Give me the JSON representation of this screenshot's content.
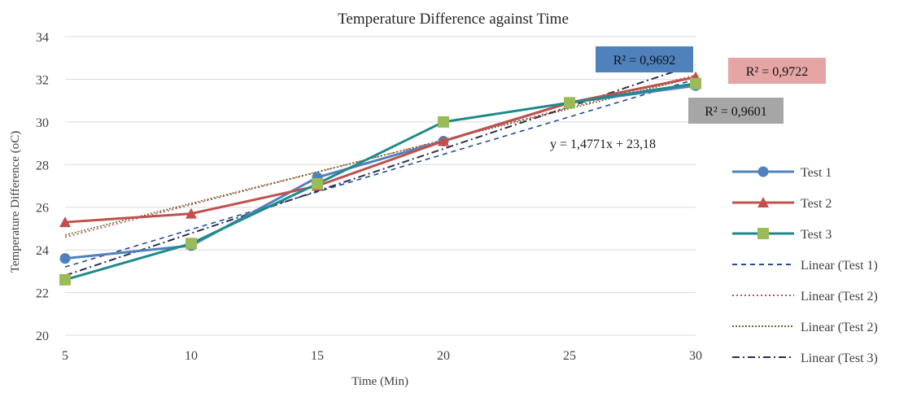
{
  "chart_data": {
    "type": "line",
    "title": "Temperature Difference against Time",
    "xlabel": "Time (Min)",
    "ylabel": "Temperature Difference (oC)",
    "x": [
      5,
      10,
      15,
      20,
      25,
      30
    ],
    "xlim": [
      5,
      30
    ],
    "ylim": [
      20,
      34
    ],
    "yticks": [
      20,
      22,
      24,
      26,
      28,
      30,
      32,
      34
    ],
    "xticks": [
      5,
      10,
      15,
      20,
      25,
      30
    ],
    "grid": "horizontal",
    "legend_position": "right",
    "series": [
      {
        "name": "Test 1",
        "values": [
          23.6,
          24.2,
          27.4,
          29.1,
          30.9,
          31.7
        ],
        "color": "#4f81bd",
        "marker": "circle"
      },
      {
        "name": "Test 2",
        "values": [
          25.3,
          25.7,
          27.0,
          29.1,
          30.9,
          32.1
        ],
        "color": "#c0504d",
        "marker": "triangle"
      },
      {
        "name": "Test 3",
        "values": [
          22.6,
          24.3,
          27.1,
          30.0,
          30.9,
          31.8
        ],
        "color": "#1f8a8a",
        "marker": "square",
        "marker_color": "#9bbb59"
      }
    ],
    "trendlines": [
      {
        "name": "Linear (Test 1)",
        "of": "Test 1",
        "y_at_5": 23.2,
        "y_at_30": 32.0,
        "color": "#1f4e99",
        "dash": "6,5",
        "r2_label": "R² = 0,9601",
        "r2_box_color": "#a6a6a6"
      },
      {
        "name": "Linear (Test 2)",
        "of": "Test 2",
        "y_at_5": 24.6,
        "y_at_30": 32.2,
        "color": "#c0504d",
        "dash": "2,3",
        "r2_label": "R² = 0,9722",
        "r2_box_color": "#e6a5a5"
      },
      {
        "name": "Linear (Test 2)",
        "of": "Test 2",
        "y_at_5": 24.7,
        "y_at_30": 32.1,
        "color": "#6b6b2e",
        "dash": "2,2",
        "r2_label": "",
        "r2_box_color": ""
      },
      {
        "name": "Linear (Test 3)",
        "of": "Test 3",
        "y_at_5": 22.8,
        "y_at_30": 32.7,
        "color": "#2e2e4e",
        "dash": "9,4,2,4",
        "r2_label": "R² = 0,9692",
        "r2_box_color": "#4f81bd"
      }
    ],
    "equation_label": "y = 1,4771x + 23,18"
  }
}
